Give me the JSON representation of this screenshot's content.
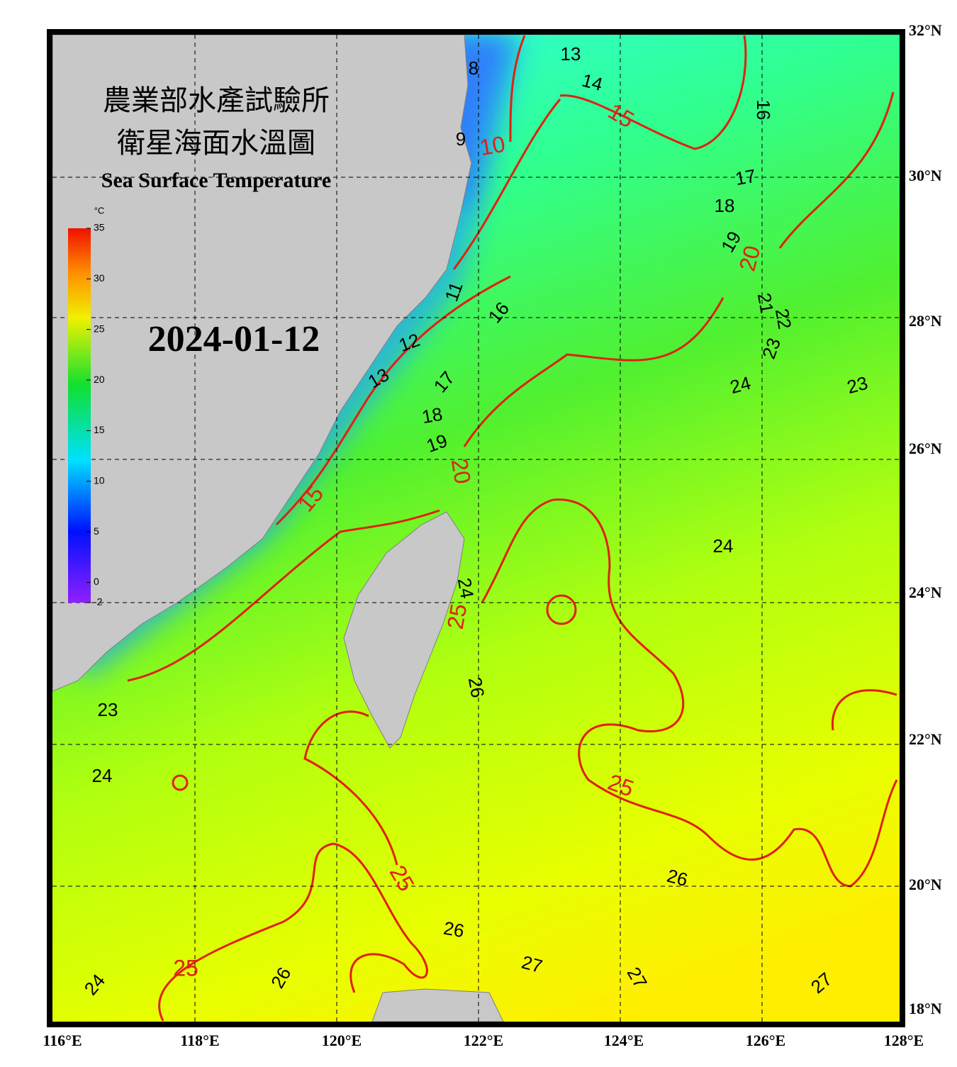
{
  "header": {
    "title_lines": [
      "農業部水產試驗所",
      "衛星海面水溫圖"
    ],
    "subtitle": "Sea Surface Temperature",
    "date": "2024-01-12"
  },
  "colorbar": {
    "unit": "°C",
    "range": [
      -2,
      35
    ],
    "ticks": [
      -2,
      0,
      5,
      10,
      15,
      20,
      25,
      30,
      35
    ]
  },
  "lon_labels": [
    "116°E",
    "118°E",
    "120°E",
    "122°E",
    "124°E",
    "126°E",
    "128°E"
  ],
  "lat_labels": [
    "32°N",
    "30°N",
    "28°N",
    "26°N",
    "24°N",
    "22°N",
    "20°N",
    "18°N"
  ],
  "contour_labels": [
    "13",
    "14",
    "16",
    "8",
    "9",
    "17",
    "18",
    "19",
    "21",
    "22",
    "23",
    "24",
    "23",
    "11",
    "16",
    "12",
    "13",
    "17",
    "18",
    "19",
    "24",
    "24",
    "26",
    "23",
    "24",
    "26",
    "26",
    "27",
    "27",
    "27",
    "26",
    "24"
  ],
  "isotherm_labels": [
    "15",
    "10",
    "20",
    "20",
    "15",
    "25",
    "25",
    "25",
    "25"
  ]
}
